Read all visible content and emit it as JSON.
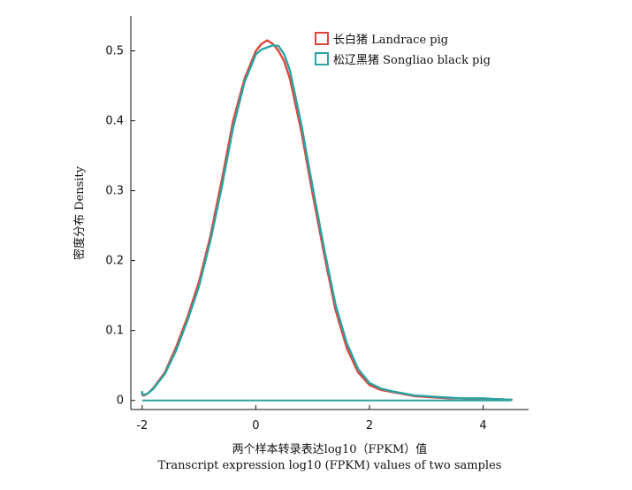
{
  "chart_data": {
    "type": "line",
    "title": "",
    "xlabel": "两个样本转录表达log10（FPKM）值",
    "xlabel_en": "Transcript expression log10 (FPKM) values of two samples",
    "ylabel": "密度分布 Density",
    "xlim": [
      -2.2,
      4.8
    ],
    "ylim": [
      -0.013,
      0.55
    ],
    "x_ticks": [
      -2,
      0,
      2,
      4
    ],
    "x_tick_labels": [
      "-2",
      "0",
      "2",
      "4"
    ],
    "y_ticks": [
      0,
      0.1,
      0.2,
      0.3,
      0.4,
      0.5
    ],
    "y_tick_labels": [
      "0",
      "0.1",
      "0.2",
      "0.3",
      "0.4",
      "0.5"
    ],
    "grid": false,
    "legend_position": "top-right",
    "series": [
      {
        "name": "长白猪 Landrace pig",
        "color": "#e0463a",
        "x": [
          -2.0,
          -2.0,
          -1.97,
          -1.9,
          -1.8,
          -1.6,
          -1.4,
          -1.2,
          -1.0,
          -0.8,
          -0.6,
          -0.4,
          -0.2,
          0.0,
          0.1,
          0.2,
          0.3,
          0.4,
          0.5,
          0.6,
          0.8,
          1.0,
          1.2,
          1.4,
          1.6,
          1.8,
          2.0,
          2.2,
          2.4,
          2.6,
          2.8,
          3.0,
          3.2,
          3.4,
          3.6,
          3.8,
          4.0,
          4.2,
          4.5
        ],
        "y": [
          0.012,
          0.008,
          0.007,
          0.01,
          0.018,
          0.04,
          0.077,
          0.12,
          0.17,
          0.235,
          0.315,
          0.4,
          0.46,
          0.5,
          0.51,
          0.515,
          0.51,
          0.5,
          0.485,
          0.46,
          0.385,
          0.295,
          0.21,
          0.13,
          0.075,
          0.04,
          0.022,
          0.015,
          0.012,
          0.009,
          0.006,
          0.005,
          0.004,
          0.003,
          0.003,
          0.002,
          0.002,
          0.002,
          0.001
        ]
      },
      {
        "name": "松辽黑猪 Songliao black pig",
        "color": "#2aa3a3",
        "x": [
          -2.0,
          -2.0,
          -1.97,
          -1.9,
          -1.8,
          -1.6,
          -1.4,
          -1.2,
          -1.0,
          -0.8,
          -0.6,
          -0.4,
          -0.2,
          0.0,
          0.1,
          0.2,
          0.3,
          0.4,
          0.5,
          0.6,
          0.8,
          1.0,
          1.2,
          1.4,
          1.6,
          1.8,
          2.0,
          2.2,
          2.4,
          2.6,
          2.8,
          3.0,
          3.2,
          3.4,
          3.6,
          3.8,
          4.0,
          4.2,
          4.5
        ],
        "y": [
          0.012,
          0.009,
          0.008,
          0.01,
          0.017,
          0.038,
          0.072,
          0.115,
          0.163,
          0.228,
          0.305,
          0.39,
          0.455,
          0.495,
          0.502,
          0.505,
          0.508,
          0.507,
          0.495,
          0.472,
          0.395,
          0.305,
          0.218,
          0.138,
          0.082,
          0.045,
          0.025,
          0.017,
          0.013,
          0.01,
          0.007,
          0.006,
          0.005,
          0.004,
          0.003,
          0.003,
          0.003,
          0.002,
          0.001
        ],
        "baseline": {
          "x": [
            -2.0,
            4.5
          ],
          "y": [
            0,
            0
          ]
        }
      }
    ]
  }
}
